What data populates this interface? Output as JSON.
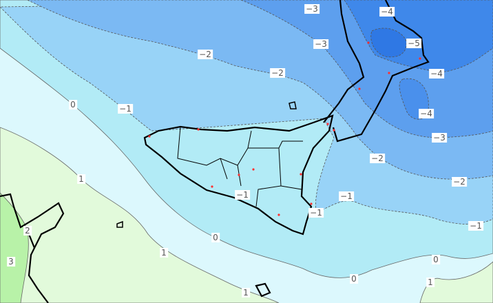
{
  "map": {
    "region": "Sicily / Calabria, southern Italy",
    "colors": {
      "band_gt2": "#b8f2a8",
      "band_1_2": "#e2fadb",
      "band_0_1": "#dcf8fd",
      "band_m1_0": "#b2ebf6",
      "band_m2_m1": "#98d3f7",
      "band_m3_m2": "#7bb9f3",
      "band_m4_m3": "#5d9fee",
      "band_lt_m4": "#3f88ea",
      "coastline": "#000000",
      "city_marker": "#ff3030"
    },
    "contour_labels": [
      "-3",
      "-4",
      "-3",
      "-5",
      "-2",
      "-2",
      "-4",
      "0",
      "-1",
      "-4",
      "-3",
      "-2",
      "-2",
      "1",
      "-1",
      "-1",
      "-1",
      "-1",
      "2",
      "0",
      "1",
      "0",
      "3",
      "0",
      "1",
      "1"
    ]
  }
}
